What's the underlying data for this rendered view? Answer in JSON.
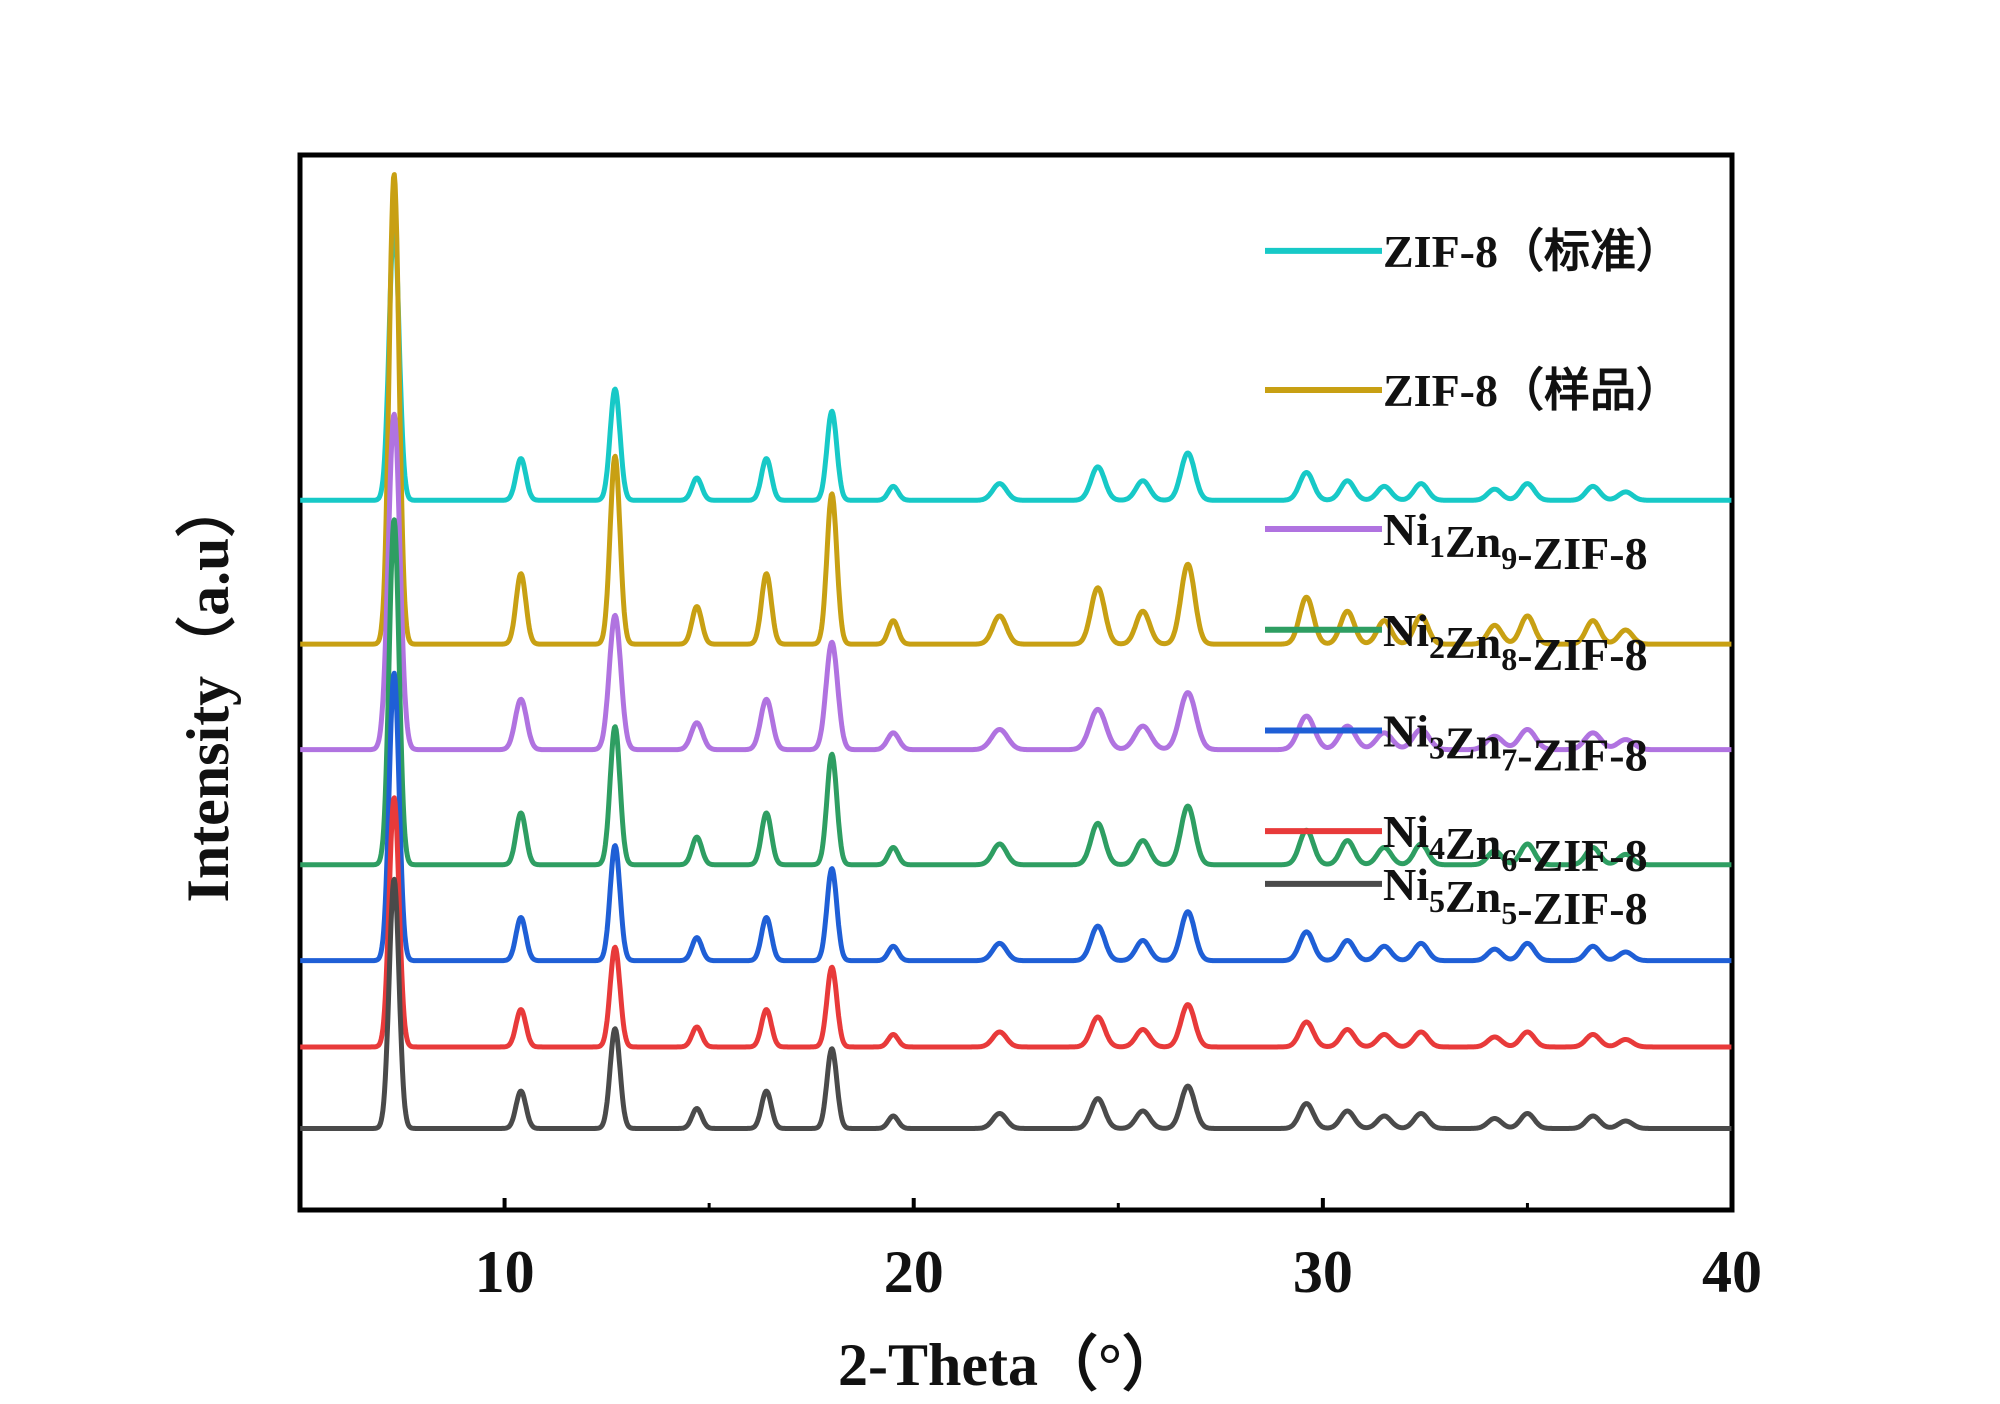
{
  "chart_data": {
    "type": "line",
    "title": "",
    "xlabel": "2-Theta（°）",
    "ylabel": "Intensity（a.u）",
    "xlim": [
      5,
      40
    ],
    "xticks": [
      10,
      20,
      30,
      40
    ],
    "minor_xticks": [
      15,
      25,
      35
    ],
    "grid": false,
    "legend_position": "right, aligned with each offset trace",
    "peaks": [
      {
        "x": 7.3,
        "rel": 1.0
      },
      {
        "x": 10.4,
        "rel": 0.15
      },
      {
        "x": 12.7,
        "rel": 0.4
      },
      {
        "x": 14.7,
        "rel": 0.08
      },
      {
        "x": 16.4,
        "rel": 0.15
      },
      {
        "x": 18.0,
        "rel": 0.32
      },
      {
        "x": 19.5,
        "rel": 0.05
      },
      {
        "x": 22.1,
        "rel": 0.06
      },
      {
        "x": 24.5,
        "rel": 0.12
      },
      {
        "x": 25.6,
        "rel": 0.07
      },
      {
        "x": 26.7,
        "rel": 0.17
      },
      {
        "x": 29.6,
        "rel": 0.1
      },
      {
        "x": 30.6,
        "rel": 0.07
      },
      {
        "x": 31.5,
        "rel": 0.05
      },
      {
        "x": 32.4,
        "rel": 0.06
      },
      {
        "x": 34.2,
        "rel": 0.04
      },
      {
        "x": 35.0,
        "rel": 0.06
      },
      {
        "x": 36.6,
        "rel": 0.05
      },
      {
        "x": 37.4,
        "rel": 0.03
      }
    ],
    "series": [
      {
        "name": "ZIF-8（标准）",
        "label_base": "ZIF-8（标准）",
        "color": "#17C9C7",
        "baseline": 3.2,
        "peak_height": 2.9,
        "width": 0.12
      },
      {
        "name": "ZIF-8（样品）",
        "label_base": "ZIF-8（样品）",
        "color": "#C8A013",
        "baseline": 1.7,
        "peak_height": 4.9,
        "width": 0.12
      },
      {
        "name": "Ni1Zn9-ZIF-8",
        "label_base": "Ni",
        "sub1": "1",
        "label_mid": "Zn",
        "sub2": "9",
        "label_end": "-ZIF-8",
        "color": "#B073E0",
        "baseline": 0.6,
        "peak_height": 3.5,
        "width": 0.14
      },
      {
        "name": "Ni2Zn8-ZIF-8",
        "label_base": "Ni",
        "sub1": "2",
        "label_mid": "Zn",
        "sub2": "8",
        "label_end": "-ZIF-8",
        "color": "#2E9E62",
        "baseline": -0.6,
        "peak_height": 3.6,
        "width": 0.12
      },
      {
        "name": "Ni3Zn7-ZIF-8",
        "label_base": "Ni",
        "sub1": "3",
        "label_mid": "Zn",
        "sub2": "7",
        "label_end": "-ZIF-8",
        "color": "#1F5FD6",
        "baseline": -1.6,
        "peak_height": 3.0,
        "width": 0.12
      },
      {
        "name": "Ni4Zn6-ZIF-8",
        "label_base": "Ni",
        "sub1": "4",
        "label_mid": "Zn",
        "sub2": "6",
        "label_end": "-ZIF-8",
        "color": "#E83A3A",
        "baseline": -2.5,
        "peak_height": 2.6,
        "width": 0.12
      },
      {
        "name": "Ni5Zn5-ZIF-8",
        "label_base": "Ni",
        "sub1": "5",
        "label_mid": "Zn",
        "sub2": "5",
        "label_end": "-ZIF-8",
        "color": "#4A4A4A",
        "baseline": -3.35,
        "peak_height": 2.6,
        "width": 0.12
      }
    ],
    "ylim": [
      -4.2,
      6.8
    ],
    "legend_y": [
      5.8,
      4.35,
      2.9,
      1.85,
      0.8,
      -0.25,
      -0.8
    ]
  }
}
